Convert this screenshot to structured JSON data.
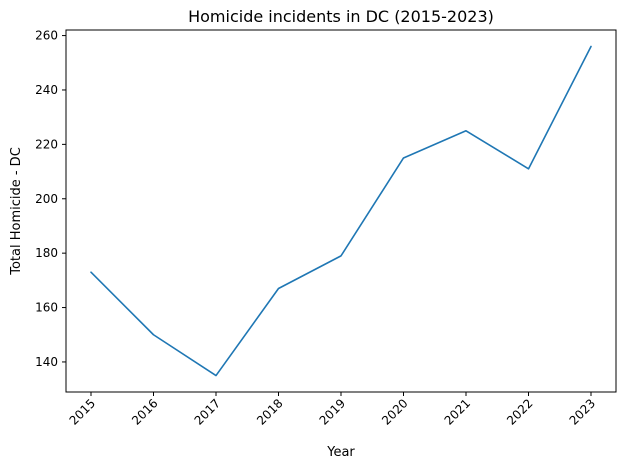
{
  "chart_data": {
    "type": "line",
    "title": "Homicide incidents in DC (2015-2023)",
    "xlabel": "Year",
    "ylabel": "Total Homicide - DC",
    "x": [
      2015,
      2016,
      2017,
      2018,
      2019,
      2020,
      2021,
      2022,
      2023
    ],
    "series": [
      {
        "name": "Total Homicide - DC",
        "values": [
          173,
          150,
          135,
          167,
          179,
          215,
          225,
          211,
          256
        ],
        "color": "#1f77b4"
      }
    ],
    "xticks": [
      2015,
      2016,
      2017,
      2018,
      2019,
      2020,
      2021,
      2022,
      2023
    ],
    "yticks": [
      140,
      160,
      180,
      200,
      220,
      240,
      260
    ],
    "xlim": [
      2014.6,
      2023.4
    ],
    "ylim": [
      128.95,
      262.05
    ],
    "x_tick_rotation": 45,
    "grid": false,
    "legend": "none",
    "colors": {
      "line": "#1f77b4",
      "spine": "#000000",
      "text": "#000000",
      "background": "#ffffff"
    }
  }
}
